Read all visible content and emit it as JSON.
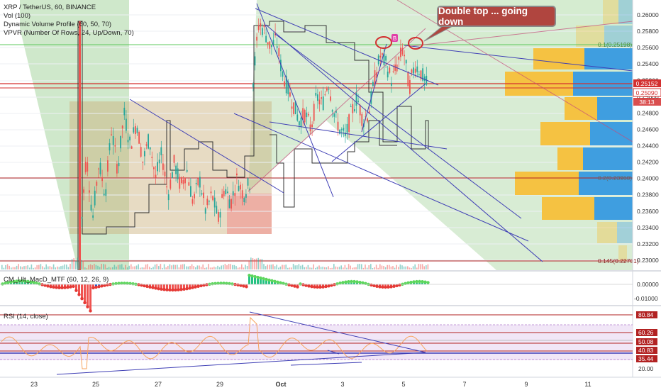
{
  "header": {
    "symbol_line": "XRP / TetherUS, 60, BINANCE",
    "indicators": [
      "Vol (100)",
      "Dynamic Volume Profile (60, 50, 70)",
      "VPVR (Number Of Rows, 24, Up/Down, 70)"
    ]
  },
  "annotation": {
    "text": "Double top ... going down",
    "marker": "B"
  },
  "price_labels": {
    "current": "0.25152",
    "current2": "0.25090",
    "countdown": "38:13",
    "fib_top": "0.1(0.25198)",
    "fib_mid": "0.2(0.23960)",
    "fib_low": "0.145(0.22701)"
  },
  "macd": {
    "label": "CM_Ult_MacD_MTF (60, 12, 26, 9)",
    "ticks": [
      "0.00000",
      "-0.01000"
    ]
  },
  "rsi": {
    "label": "RSI (14, close)",
    "levels": [
      "80.84",
      "60.26",
      "50.08",
      "40.83",
      "35.44",
      "20.00"
    ]
  },
  "colors": {
    "bull": "#26a69a",
    "bear": "#ef5350",
    "profile_up": "#f5c242",
    "profile_down": "#3f9ee0",
    "trend": "#3f3fb5",
    "rsi_line": "#f7a35c",
    "accent_red": "#c0392b"
  },
  "chart_data": {
    "type": "candlestick",
    "title": "XRP / TetherUS, 60, BINANCE",
    "y_ticks": [
      0.26,
      0.258,
      0.256,
      0.254,
      0.252,
      0.25,
      0.248,
      0.246,
      0.244,
      0.242,
      0.24,
      0.238,
      0.236,
      0.234,
      0.232,
      0.23
    ],
    "ylim": [
      0.2288,
      0.2615
    ],
    "x_ticks": [
      "23",
      "25",
      "27",
      "29",
      "Oct",
      "3",
      "5",
      "7",
      "9",
      "11"
    ],
    "price_path": [
      [
        0.232,
        0.243,
        0.235,
        0.242,
        0.238,
        0.246,
        0.241,
        0.248,
        0.244,
        0.247,
        0.242,
        0.245,
        0.24,
        0.243,
        0.238,
        0.242,
        0.239,
        0.241,
        0.237,
        0.24,
        0.236,
        0.238,
        0.235,
        0.239,
        0.237,
        0.24,
        0.238,
        0.2395
      ],
      [
        0.252,
        0.259,
        0.258,
        0.256,
        0.257,
        0.253,
        0.251,
        0.249,
        0.247,
        0.248,
        0.246,
        0.25,
        0.249,
        0.252,
        0.248,
        0.246,
        0.245,
        0.248,
        0.25,
        0.247,
        0.248,
        0.252,
        0.255,
        0.254,
        0.252,
        0.254,
        0.256,
        0.251,
        0.254,
        0.253,
        0.2515
      ]
    ]
  }
}
